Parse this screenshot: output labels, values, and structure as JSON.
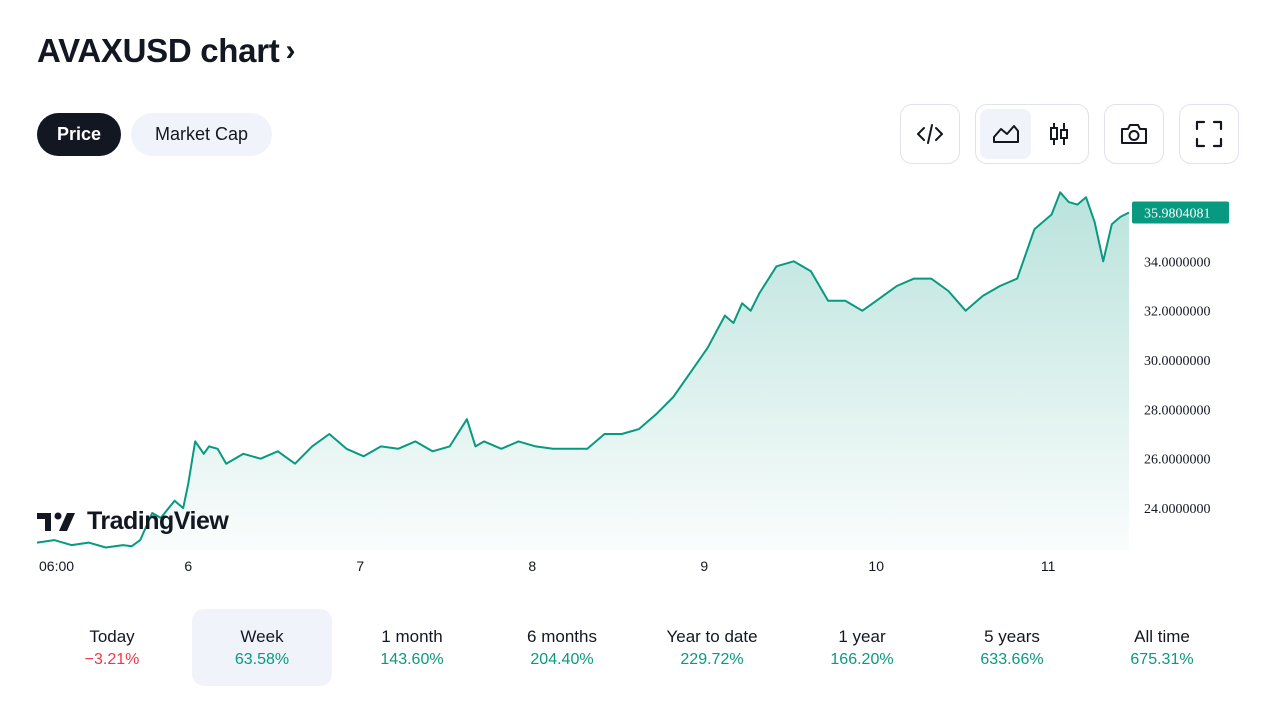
{
  "header": {
    "title": "AVAXUSD chart",
    "chevron": "›"
  },
  "toggle": {
    "price_label": "Price",
    "market_cap_label": "Market Cap"
  },
  "toolbar": {
    "embed_icon": "code-icon",
    "area_icon": "area-chart-icon",
    "candles_icon": "candlestick-icon",
    "camera_icon": "camera-icon",
    "fullscreen_icon": "fullscreen-icon"
  },
  "brand": {
    "name": "TradingView"
  },
  "colors": {
    "line": "#089981",
    "negative": "#f23645",
    "text": "#131722"
  },
  "chart_data": {
    "type": "area",
    "x_ticks": [
      "06:00",
      "6",
      "7",
      "8",
      "9",
      "10",
      "11"
    ],
    "y_ticks": [
      "24.0000000",
      "26.0000000",
      "28.0000000",
      "30.0000000",
      "32.0000000",
      "34.0000000"
    ],
    "ylim": [
      22.3,
      37.5
    ],
    "xlim": [
      0,
      6.35
    ],
    "last_price": "35.9804081",
    "series": [
      {
        "x": [
          0.0,
          0.1,
          0.2,
          0.3,
          0.4,
          0.5,
          0.55,
          0.6,
          0.67,
          0.72,
          0.8,
          0.85,
          0.88,
          0.92,
          0.97,
          1.0,
          1.05,
          1.1,
          1.15,
          1.2,
          1.3,
          1.4,
          1.5,
          1.6,
          1.7,
          1.8,
          1.9,
          2.0,
          2.1,
          2.2,
          2.3,
          2.4,
          2.5,
          2.55,
          2.6,
          2.7,
          2.8,
          2.9,
          3.0,
          3.1,
          3.2,
          3.3,
          3.4,
          3.5,
          3.6,
          3.7,
          3.8,
          3.9,
          4.0,
          4.05,
          4.1,
          4.15,
          4.2,
          4.3,
          4.4,
          4.5,
          4.6,
          4.7,
          4.8,
          4.9,
          5.0,
          5.1,
          5.2,
          5.3,
          5.4,
          5.5,
          5.6,
          5.7,
          5.8,
          5.9,
          5.95,
          6.0,
          6.05,
          6.1,
          6.15,
          6.2,
          6.25,
          6.3,
          6.35
        ],
        "y": [
          22.6,
          22.7,
          22.5,
          22.6,
          22.4,
          22.5,
          22.45,
          22.7,
          23.8,
          23.6,
          24.3,
          24.0,
          25.0,
          26.7,
          26.2,
          26.5,
          26.4,
          25.8,
          26.0,
          26.2,
          26.0,
          26.3,
          25.8,
          26.5,
          27.0,
          26.4,
          26.1,
          26.5,
          26.4,
          26.7,
          26.3,
          26.5,
          27.6,
          26.5,
          26.7,
          26.4,
          26.7,
          26.5,
          26.4,
          26.4,
          26.4,
          27.0,
          27.0,
          27.2,
          27.8,
          28.5,
          29.5,
          30.5,
          31.8,
          31.5,
          32.3,
          32.0,
          32.7,
          33.8,
          34.0,
          33.6,
          32.4,
          32.4,
          32.0,
          32.5,
          33.0,
          33.3,
          33.3,
          32.8,
          32.0,
          32.6,
          33.0,
          33.3,
          35.3,
          35.9,
          36.8,
          36.4,
          36.3,
          36.6,
          35.6,
          34.0,
          35.5,
          35.8,
          35.98
        ]
      }
    ]
  },
  "periods": [
    {
      "label": "Today",
      "value": "−3.21%",
      "dir": "down"
    },
    {
      "label": "Week",
      "value": "63.58%",
      "dir": "up",
      "active": true
    },
    {
      "label": "1 month",
      "value": "143.60%",
      "dir": "up"
    },
    {
      "label": "6 months",
      "value": "204.40%",
      "dir": "up"
    },
    {
      "label": "Year to date",
      "value": "229.72%",
      "dir": "up"
    },
    {
      "label": "1 year",
      "value": "166.20%",
      "dir": "up"
    },
    {
      "label": "5 years",
      "value": "633.66%",
      "dir": "up"
    },
    {
      "label": "All time",
      "value": "675.31%",
      "dir": "up"
    }
  ]
}
